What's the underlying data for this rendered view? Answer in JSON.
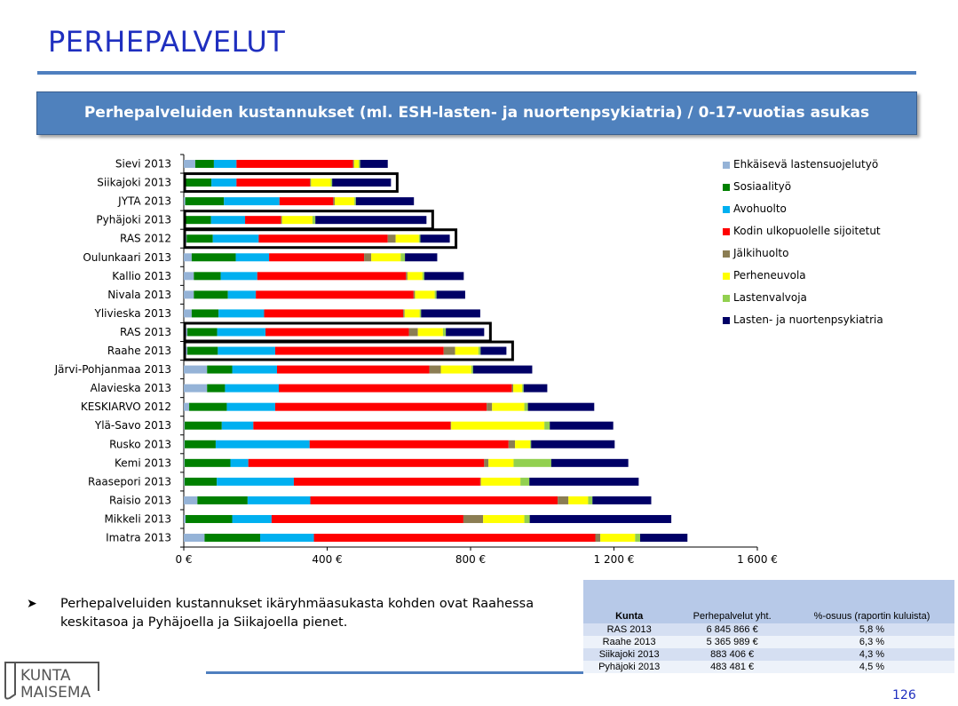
{
  "header": {
    "title": "PERHEPALVELUT",
    "subtitle": "Perhepalveluiden kustannukset (ml. ESH-lasten- ja nuortenpsykiatria) / 0-17-vuotias asukas"
  },
  "chart_data": {
    "type": "bar",
    "orientation": "horizontal",
    "stacked": true,
    "categories": [
      "Sievi 2013",
      "Siikajoki 2013",
      "JYTA 2013",
      "Pyhäjoki 2013",
      "RAS 2012",
      "Oulunkaari 2013",
      "Kallio 2013",
      "Nivala 2013",
      "Ylivieska 2013",
      "RAS 2013",
      "Raahe 2013",
      "Järvi-Pohjanmaa 2013",
      "Alavieska 2013",
      "KESKIARVO 2012",
      "Ylä-Savo 2013",
      "Rusko 2013",
      "Kemi 2013",
      "Raasepori 2013",
      "Raisio 2013",
      "Mikkeli 2013",
      "Imatra 2013"
    ],
    "highlighted": [
      "Siikajoki 2013",
      "Pyhäjoki 2013",
      "RAS 2012",
      "RAS 2013",
      "Raahe 2013"
    ],
    "xlim": [
      0,
      1600
    ],
    "xticks": [
      "0 €",
      "400 €",
      "800 €",
      "1 200 €",
      "1 600 €"
    ],
    "grid": false,
    "legend_position": "right",
    "series": [
      {
        "name": "Ehkäisevä lastensuojelutyö",
        "color": "#95b3d7",
        "values": [
          32,
          4,
          4,
          4,
          8,
          22,
          28,
          28,
          22,
          10,
          10,
          65,
          65,
          15,
          2,
          2,
          2,
          2,
          38,
          5,
          58
        ]
      },
      {
        "name": "Sosiaalityö",
        "color": "#008000",
        "values": [
          52,
          73,
          108,
          72,
          73,
          123,
          75,
          95,
          75,
          83,
          85,
          70,
          50,
          105,
          104,
          87,
          128,
          90,
          140,
          130,
          155
        ]
      },
      {
        "name": "Avohuolto",
        "color": "#00b0f0",
        "values": [
          63,
          70,
          155,
          95,
          128,
          93,
          102,
          78,
          127,
          135,
          160,
          125,
          150,
          135,
          88,
          262,
          50,
          215,
          175,
          110,
          150
        ]
      },
      {
        "name": "Kodin ulkopuolelle sijoitetut",
        "color": "#ff0000",
        "values": [
          325,
          205,
          150,
          100,
          360,
          265,
          415,
          440,
          388,
          400,
          470,
          425,
          650,
          590,
          550,
          555,
          658,
          520,
          690,
          535,
          785
        ]
      },
      {
        "name": "Jälkihuolto",
        "color": "#8b7d53",
        "values": [
          3,
          3,
          4,
          3,
          22,
          20,
          4,
          4,
          4,
          25,
          32,
          32,
          4,
          15,
          2,
          18,
          12,
          2,
          30,
          55,
          14
        ]
      },
      {
        "name": "Perheneuvola",
        "color": "#ffff00",
        "values": [
          13,
          55,
          55,
          85,
          65,
          82,
          42,
          55,
          42,
          70,
          65,
          85,
          25,
          90,
          260,
          42,
          70,
          110,
          55,
          115,
          97
        ]
      },
      {
        "name": "Lastenvalvoja",
        "color": "#92d050",
        "values": [
          4,
          4,
          4,
          8,
          4,
          12,
          5,
          5,
          4,
          8,
          6,
          5,
          4,
          10,
          15,
          3,
          105,
          25,
          12,
          15,
          14
        ]
      },
      {
        "name": "Lasten- ja nuortenpsykiatria",
        "color": "#000066",
        "values": [
          77,
          164,
          162,
          310,
          82,
          90,
          110,
          80,
          165,
          107,
          72,
          165,
          66,
          185,
          177,
          233,
          215,
          305,
          164,
          395,
          132
        ]
      }
    ]
  },
  "legend": {
    "items": [
      {
        "label": "Ehkäisevä lastensuojelutyö",
        "color": "#95b3d7"
      },
      {
        "label": "Sosiaalityö",
        "color": "#008000"
      },
      {
        "label": "Avohuolto",
        "color": "#00b0f0"
      },
      {
        "label": "Kodin ulkopuolelle sijoitetut",
        "color": "#ff0000"
      },
      {
        "label": "Jälkihuolto",
        "color": "#8b7d53"
      },
      {
        "label": "Perheneuvola",
        "color": "#ffff00"
      },
      {
        "label": "Lastenvalvoja",
        "color": "#92d050"
      },
      {
        "label": "Lasten- ja nuortenpsykiatria",
        "color": "#000066"
      }
    ]
  },
  "bullet": {
    "text": "Perhepalveluiden kustannukset ikäryhmäasukasta kohden ovat Raahessa keskitasoa ja Pyhäjoella ja Siikajoella pienet."
  },
  "table": {
    "headers": {
      "kunta": "Kunta",
      "total": "Perhepalvelut yht.",
      "share": "%-osuus (raportin kuluista)"
    },
    "rows": [
      {
        "kunta": "RAS 2013",
        "total": "6 845 866 €",
        "share": "5,8 %"
      },
      {
        "kunta": "Raahe 2013",
        "total": "5 365 989 €",
        "share": "6,3 %"
      },
      {
        "kunta": "Siikajoki 2013",
        "total": "883 406 €",
        "share": "4,3 %"
      },
      {
        "kunta": "Pyhäjoki 2013",
        "total": "483 481 €",
        "share": "4,5 %"
      }
    ]
  },
  "footer": {
    "logo_text_1": "KUNTA",
    "logo_text_2": "MAISEMA",
    "page_number": "126"
  }
}
